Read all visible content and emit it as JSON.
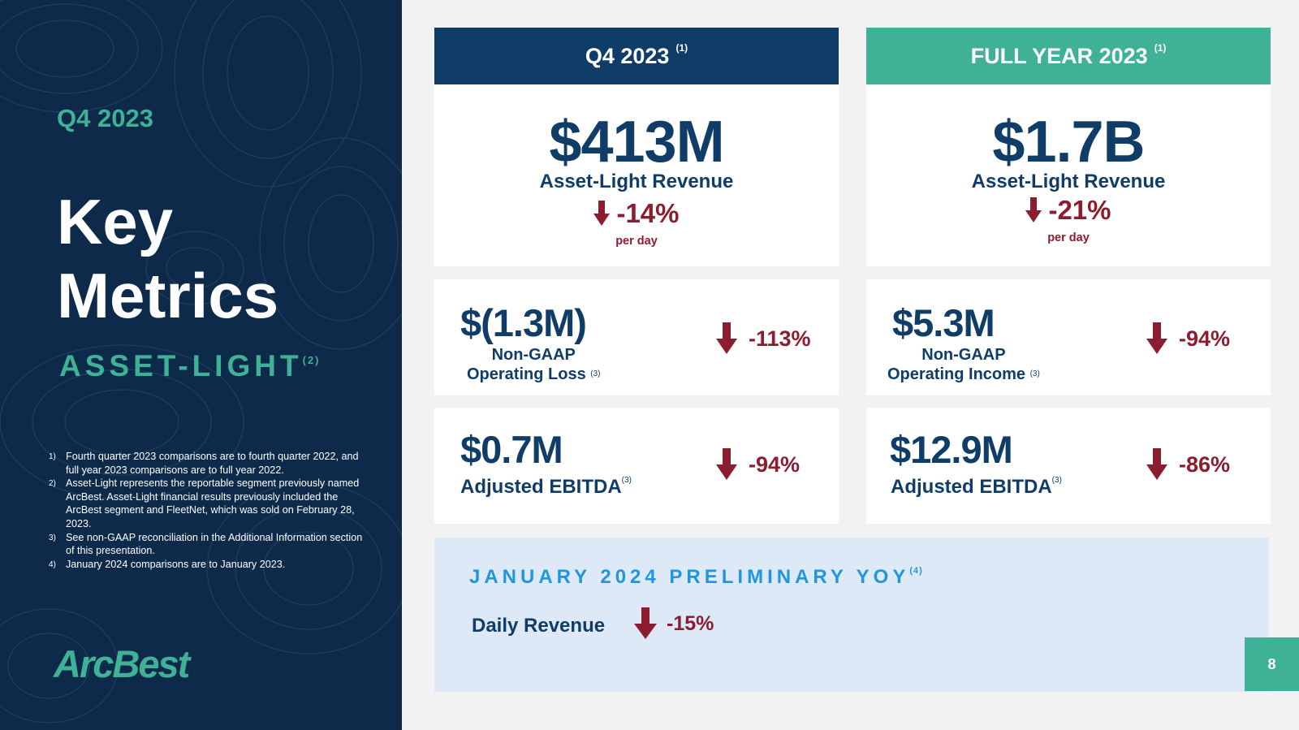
{
  "left_panel": {
    "quarter": "Q4 2023",
    "title_line1": "Key",
    "title_line2": "Metrics",
    "segment": "ASSET-LIGHT",
    "segment_sup": "(2)",
    "footnotes": [
      {
        "num": "1)",
        "text": "Fourth quarter 2023 comparisons are to fourth quarter 2022, and full year 2023 comparisons are to full year 2022."
      },
      {
        "num": "2)",
        "text": "Asset-Light represents the reportable segment previously named ArcBest. Asset-Light financial results previously included the ArcBest segment and FleetNet, which was sold on February 28, 2023."
      },
      {
        "num": "3)",
        "text": "See non-GAAP reconciliation in the Additional Information section of this presentation."
      },
      {
        "num": "4)",
        "text": "January 2024 comparisons are to January 2023."
      }
    ],
    "logo": "ArcBest"
  },
  "headers": {
    "q4": {
      "label": "Q4 2023",
      "sup": "(1)"
    },
    "fy": {
      "label": "FULL YEAR 2023",
      "sup": "(1)"
    }
  },
  "q4": {
    "revenue": {
      "value": "$413M",
      "label": "Asset-Light Revenue",
      "change": "-14%",
      "note": "per day"
    },
    "operating": {
      "value": "$(1.3M)",
      "label_line1": "Non-GAAP",
      "label_line2": "Operating Loss",
      "sup": "(3)",
      "change": "-113%"
    },
    "ebitda": {
      "value": "$0.7M",
      "label": "Adjusted EBITDA",
      "sup": "(3)",
      "change": "-94%"
    }
  },
  "fy": {
    "revenue": {
      "value": "$1.7B",
      "label": "Asset-Light Revenue",
      "change": "-21%",
      "note": "per day"
    },
    "operating": {
      "value": "$5.3M",
      "label_line1": "Non-GAAP",
      "label_line2": "Operating Income",
      "sup": "(3)",
      "change": "-94%"
    },
    "ebitda": {
      "value": "$12.9M",
      "label": "Adjusted EBITDA",
      "sup": "(3)",
      "change": "-86%"
    }
  },
  "january": {
    "title": "JANUARY 2024 PRELIMINARY YOY",
    "sup": "(4)",
    "label": "Daily Revenue",
    "change": "-15%"
  },
  "page_number": "8",
  "colors": {
    "navy": "#0d2a4a",
    "header_blue": "#103c68",
    "teal": "#3fb196",
    "decline_red": "#8c1d2e",
    "light_blue_bg": "#dde9f7",
    "title_blue": "#1e96e0"
  },
  "icons": {
    "decline": "arrow-down-icon"
  }
}
